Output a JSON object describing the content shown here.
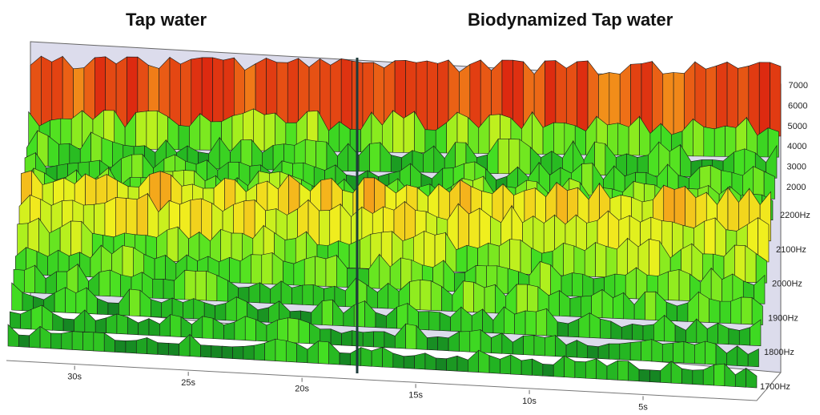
{
  "chart_data": {
    "type": "area",
    "subtype": "3d-waterfall-spectrogram",
    "panels": [
      {
        "title": "Tap water",
        "time_range_s": [
          33,
          17.5
        ]
      },
      {
        "title": "Biodynamized Tap water",
        "time_range_s": [
          17.5,
          0
        ]
      }
    ],
    "x_axis": {
      "label": "",
      "ticks": [
        "30s",
        "25s",
        "20s",
        "15s",
        "10s",
        "5s"
      ],
      "tick_values_s": [
        30,
        25,
        20,
        15,
        10,
        5
      ],
      "direction": "decreasing"
    },
    "z_axis": {
      "label": "",
      "ticks": [
        "1700Hz",
        "1800Hz",
        "1900Hz",
        "2000Hz",
        "2100Hz",
        "2200Hz"
      ],
      "tick_values_hz": [
        1700,
        1800,
        1900,
        2000,
        2100,
        2200
      ]
    },
    "y_axis": {
      "label": "",
      "ticks": [
        "2000",
        "3000",
        "4000",
        "5000",
        "6000",
        "7000"
      ],
      "tick_values": [
        2000,
        3000,
        4000,
        5000,
        6000,
        7000
      ]
    },
    "color_scale": [
      "#0f6e23",
      "#22b322",
      "#44e022",
      "#aaf01e",
      "#f0f01e",
      "#f5b21c",
      "#f07a18",
      "#dd2a10"
    ],
    "approx_peak_level_by_band": [
      {
        "band": "back (top) ridge",
        "level_range": [
          5000,
          7000
        ]
      },
      {
        "band": "upper middle",
        "level_range": [
          3000,
          4500
        ]
      },
      {
        "band": "middle (yellow) ridge",
        "level_range": [
          4500,
          6000
        ]
      },
      {
        "band": "front rows",
        "level_range": [
          2000,
          3500
        ]
      }
    ],
    "grid": false,
    "legend": "none"
  }
}
